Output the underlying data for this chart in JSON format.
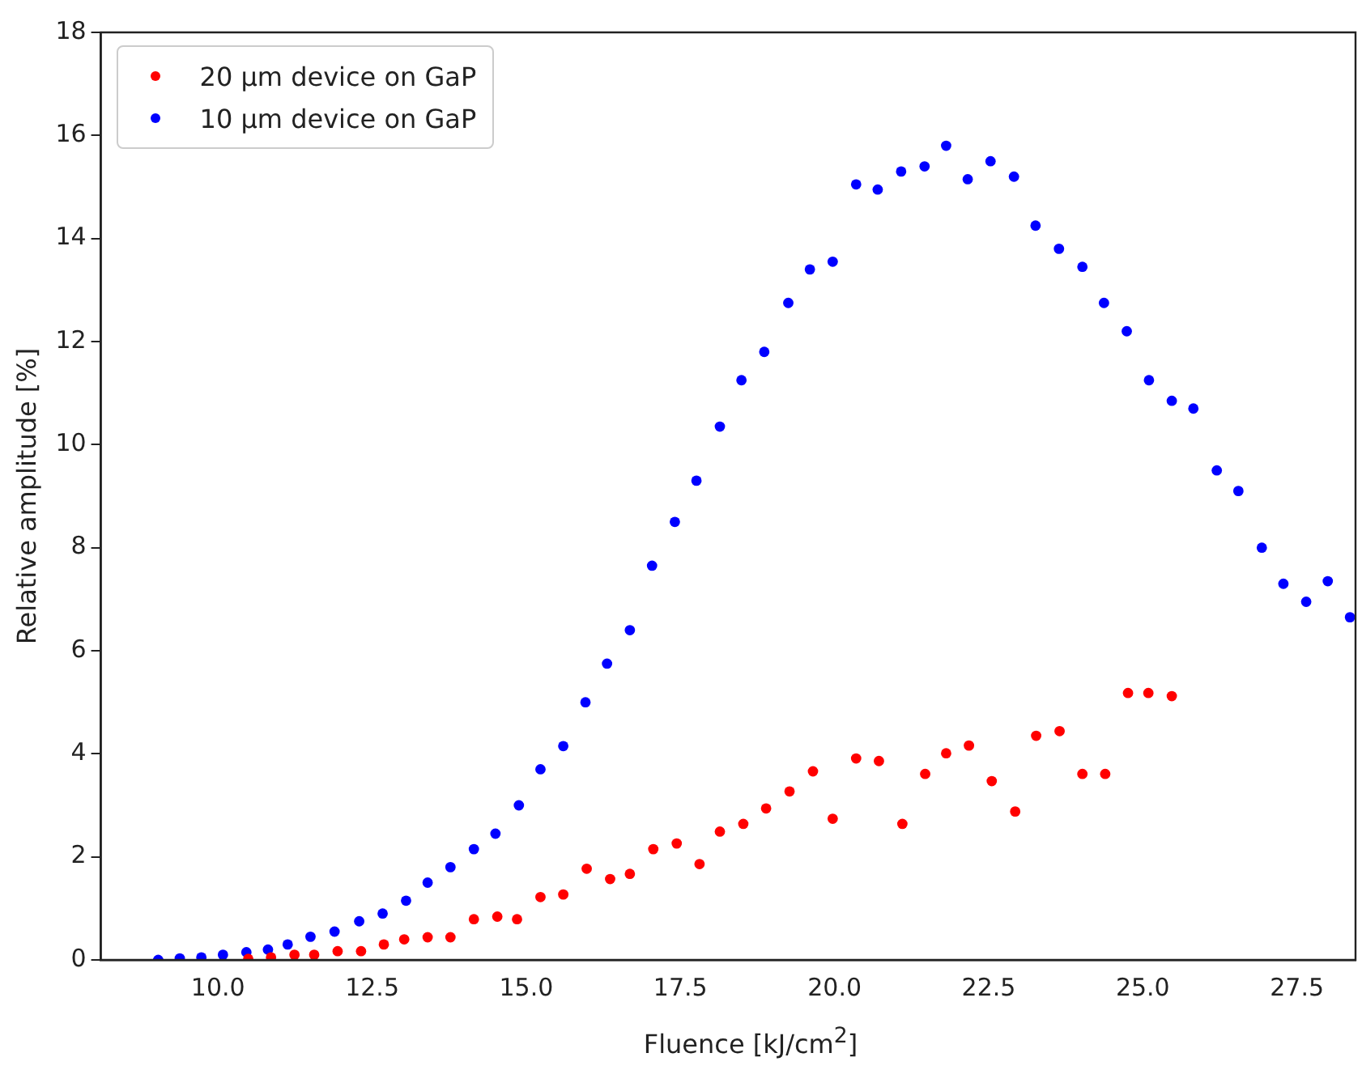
{
  "chart_data": {
    "type": "scatter",
    "xlabel": "Fluence [kJ/cm$^{2}$]",
    "ylabel": "Relative amplitude [%]",
    "xlim": [
      8.1,
      28.45
    ],
    "ylim": [
      0,
      18
    ],
    "xticks": [
      {
        "value": 10,
        "label": "10.0"
      },
      {
        "value": 12.5,
        "label": "12.5"
      },
      {
        "value": 15,
        "label": "15.0"
      },
      {
        "value": 17.5,
        "label": "17.5"
      },
      {
        "value": 20,
        "label": "20.0"
      },
      {
        "value": 22.5,
        "label": "22.5"
      },
      {
        "value": 25,
        "label": "25.0"
      },
      {
        "value": 27.5,
        "label": "27.5"
      }
    ],
    "yticks": [
      0,
      2,
      4,
      6,
      8,
      10,
      12,
      14,
      16,
      18
    ],
    "grid": false,
    "legend": "top left",
    "marker": "circle",
    "series": [
      {
        "name": "20 µm device on GaP",
        "color": "#ff0000",
        "x": [
          10.49,
          10.86,
          11.24,
          11.56,
          11.94,
          12.32,
          12.69,
          13.02,
          13.4,
          13.77,
          14.15,
          14.53,
          14.85,
          15.23,
          15.6,
          15.98,
          16.36,
          16.68,
          17.06,
          17.44,
          17.81,
          18.14,
          18.52,
          18.89,
          19.27,
          19.65,
          19.97,
          20.35,
          20.72,
          21.1,
          21.47,
          21.81,
          22.18,
          22.55,
          22.93,
          23.27,
          23.65,
          24.02,
          24.39,
          24.76,
          25.09,
          25.47
        ],
        "values": [
          0.02,
          0.05,
          0.1,
          0.1,
          0.17,
          0.17,
          0.3,
          0.4,
          0.44,
          0.44,
          0.79,
          0.84,
          0.79,
          1.22,
          1.27,
          1.77,
          1.57,
          1.67,
          2.15,
          2.26,
          1.86,
          2.49,
          2.64,
          2.94,
          3.27,
          3.66,
          2.74,
          3.91,
          3.86,
          2.64,
          3.61,
          4.01,
          4.16,
          3.47,
          2.88,
          4.35,
          4.44,
          3.61,
          3.61,
          5.18,
          5.18,
          5.12
        ]
      },
      {
        "name": "10 µm device on GaP",
        "color": "#0000ff",
        "x": [
          9.03,
          9.38,
          9.73,
          10.08,
          10.46,
          10.81,
          11.13,
          11.5,
          11.89,
          12.29,
          12.67,
          13.05,
          13.4,
          13.77,
          14.15,
          14.5,
          14.88,
          15.23,
          15.6,
          15.96,
          16.31,
          16.68,
          17.04,
          17.41,
          17.76,
          18.14,
          18.49,
          18.86,
          19.25,
          19.6,
          19.97,
          20.35,
          20.7,
          21.08,
          21.46,
          21.81,
          22.16,
          22.53,
          22.91,
          23.26,
          23.64,
          24.02,
          24.37,
          24.74,
          25.1,
          25.47,
          25.82,
          26.2,
          26.55,
          26.93,
          27.28,
          27.65,
          28.0,
          28.36
        ],
        "values": [
          0,
          0.03,
          0.05,
          0.1,
          0.15,
          0.2,
          0.3,
          0.45,
          0.55,
          0.75,
          0.9,
          1.15,
          1.5,
          1.8,
          2.15,
          2.45,
          3.0,
          3.7,
          4.15,
          5.0,
          5.75,
          6.4,
          7.65,
          8.5,
          9.3,
          10.35,
          11.25,
          11.8,
          12.75,
          13.4,
          13.55,
          15.05,
          14.95,
          15.3,
          15.4,
          15.8,
          15.15,
          15.5,
          15.2,
          14.25,
          13.8,
          13.45,
          12.75,
          12.2,
          11.25,
          10.85,
          10.7,
          9.5,
          9.1,
          8.0,
          7.3,
          6.95,
          7.35,
          6.65
        ]
      }
    ]
  }
}
